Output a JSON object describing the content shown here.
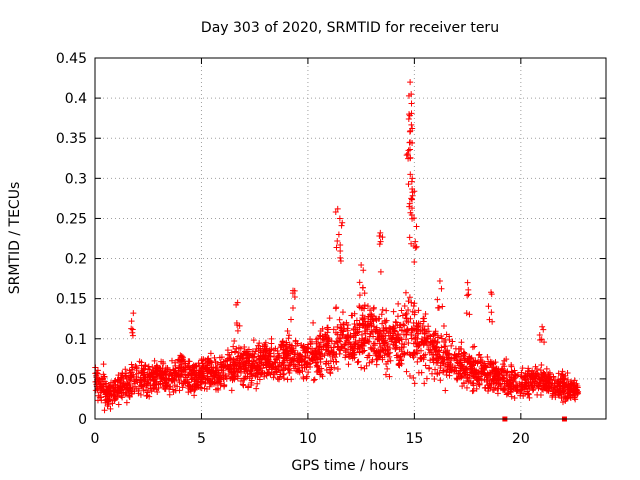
{
  "chart_data": {
    "type": "scatter",
    "title": "Day 303 of 2020, SRMTID for receiver teru",
    "xlabel": "GPS time / hours",
    "ylabel": "SRMTID / TECUs",
    "xlim": [
      0,
      24
    ],
    "ylim": [
      0,
      0.45
    ],
    "xticks": [
      0,
      5,
      10,
      15,
      20
    ],
    "xtick_labels": [
      "0",
      "5",
      "10",
      "15",
      "20"
    ],
    "yticks": [
      0,
      0.05,
      0.1,
      0.15,
      0.2,
      0.25,
      0.3,
      0.35,
      0.4,
      0.45
    ],
    "ytick_labels": [
      "0",
      "0.05",
      "0.1",
      "0.15",
      "0.2",
      "0.25",
      "0.3",
      "0.35",
      "0.4",
      "0.45"
    ],
    "grid": true,
    "marker_color": "#ff0000",
    "series": [
      {
        "name": "SRMTID",
        "marker": "plus",
        "x": [
          0.0,
          0.3,
          0.6,
          0.9,
          1.2,
          1.5,
          1.8,
          2.1,
          2.4,
          2.7,
          3.0,
          3.3,
          3.6,
          3.9,
          4.2,
          4.5,
          4.8,
          5.1,
          5.4,
          5.7,
          6.0,
          6.3,
          6.6,
          6.9,
          7.2,
          7.5,
          7.8,
          8.1,
          8.4,
          8.7,
          9.0,
          9.3,
          9.6,
          9.9,
          10.2,
          10.5,
          10.8,
          11.1,
          11.4,
          11.7,
          12.0,
          12.3,
          12.6,
          12.9,
          13.2,
          13.5,
          13.8,
          14.1,
          14.4,
          14.7,
          15.0,
          15.3,
          15.6,
          15.9,
          16.2,
          16.5,
          16.8,
          17.1,
          17.4,
          17.7,
          18.0,
          18.3,
          18.6,
          18.9,
          19.2,
          19.5,
          19.8,
          20.1,
          20.4,
          20.7,
          21.0,
          21.3,
          21.6,
          21.9,
          22.2,
          22.5,
          22.7
        ],
        "y": [
          0.05,
          0.04,
          0.03,
          0.035,
          0.04,
          0.045,
          0.05,
          0.05,
          0.045,
          0.05,
          0.055,
          0.05,
          0.05,
          0.055,
          0.06,
          0.05,
          0.055,
          0.06,
          0.06,
          0.055,
          0.06,
          0.065,
          0.065,
          0.07,
          0.065,
          0.07,
          0.07,
          0.075,
          0.07,
          0.075,
          0.08,
          0.08,
          0.075,
          0.08,
          0.085,
          0.08,
          0.085,
          0.09,
          0.095,
          0.1,
          0.095,
          0.1,
          0.11,
          0.105,
          0.1,
          0.1,
          0.095,
          0.1,
          0.1,
          0.11,
          0.1,
          0.095,
          0.09,
          0.085,
          0.08,
          0.075,
          0.07,
          0.07,
          0.065,
          0.065,
          0.06,
          0.06,
          0.055,
          0.05,
          0.05,
          0.045,
          0.045,
          0.045,
          0.045,
          0.05,
          0.045,
          0.045,
          0.04,
          0.04,
          0.04,
          0.035,
          0.035
        ],
        "spread": [
          0.03,
          0.04,
          0.025,
          0.025,
          0.025,
          0.03,
          0.03,
          0.03,
          0.03,
          0.03,
          0.03,
          0.03,
          0.03,
          0.03,
          0.035,
          0.035,
          0.03,
          0.03,
          0.03,
          0.03,
          0.03,
          0.035,
          0.035,
          0.035,
          0.035,
          0.035,
          0.035,
          0.035,
          0.035,
          0.035,
          0.04,
          0.045,
          0.04,
          0.04,
          0.045,
          0.04,
          0.045,
          0.05,
          0.055,
          0.055,
          0.05,
          0.055,
          0.06,
          0.06,
          0.055,
          0.055,
          0.05,
          0.05,
          0.06,
          0.07,
          0.065,
          0.055,
          0.05,
          0.05,
          0.045,
          0.045,
          0.04,
          0.04,
          0.04,
          0.04,
          0.04,
          0.035,
          0.035,
          0.03,
          0.03,
          0.025,
          0.025,
          0.025,
          0.025,
          0.03,
          0.025,
          0.025,
          0.025,
          0.025,
          0.025,
          0.02,
          0.02
        ],
        "peaks": [
          {
            "x": 1.8,
            "y": 0.132
          },
          {
            "x": 6.7,
            "y": 0.145
          },
          {
            "x": 9.3,
            "y": 0.16
          },
          {
            "x": 11.4,
            "y": 0.262
          },
          {
            "x": 11.5,
            "y": 0.25
          },
          {
            "x": 12.5,
            "y": 0.192
          },
          {
            "x": 13.4,
            "y": 0.232
          },
          {
            "x": 14.8,
            "y": 0.42
          },
          {
            "x": 14.85,
            "y": 0.405
          },
          {
            "x": 14.75,
            "y": 0.38
          },
          {
            "x": 14.8,
            "y": 0.345
          },
          {
            "x": 14.8,
            "y": 0.325
          },
          {
            "x": 14.9,
            "y": 0.3
          },
          {
            "x": 14.85,
            "y": 0.275
          },
          {
            "x": 15.1,
            "y": 0.24
          },
          {
            "x": 16.2,
            "y": 0.172
          },
          {
            "x": 17.5,
            "y": 0.17
          },
          {
            "x": 18.6,
            "y": 0.158
          },
          {
            "x": 21.0,
            "y": 0.115
          }
        ],
        "zero_markers": [
          {
            "x": 19.25,
            "y": 0
          },
          {
            "x": 22.05,
            "y": 0
          }
        ]
      }
    ]
  }
}
